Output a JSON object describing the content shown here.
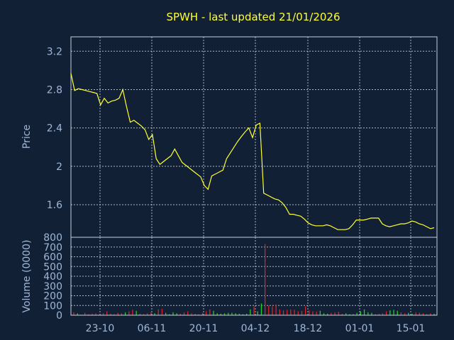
{
  "colors": {
    "background": "#112035",
    "title": "#ffff33",
    "price_line": "#ffff33",
    "axis_text": "#9fb8d8",
    "grid": "#c8d0dc",
    "volume_up": "#22cc22",
    "volume_down": "#dd2222"
  },
  "chart_data": [
    {
      "type": "line",
      "title": "SPWH - last updated 21/01/2026",
      "ylabel": "Price",
      "ylim": [
        1.26,
        3.35
      ],
      "yticks": [
        1.6,
        2,
        2.4,
        2.8,
        3.2
      ],
      "ytick_labels": [
        "1.6",
        "2",
        "2.4",
        "2.8",
        "3.2"
      ],
      "xtick_labels": [
        "23-10",
        "06-11",
        "20-11",
        "04-12",
        "18-12",
        "01-01",
        "15-01"
      ],
      "grid": true,
      "series": [
        {
          "values": [
            2.97,
            2.79,
            2.81,
            2.8,
            2.79,
            2.78,
            2.77,
            2.76,
            2.64,
            2.71,
            2.66,
            2.68,
            2.69,
            2.71,
            2.8,
            2.62,
            2.46,
            2.48,
            2.45,
            2.42,
            2.38,
            2.28,
            2.33,
            2.08,
            2.02,
            2.05,
            2.08,
            2.11,
            2.18,
            2.11,
            2.04,
            2.01,
            1.98,
            1.95,
            1.92,
            1.89,
            1.8,
            1.76,
            1.9,
            1.92,
            1.94,
            1.96,
            2.08,
            2.14,
            2.2,
            2.26,
            2.31,
            2.36,
            2.4,
            2.3,
            2.43,
            2.45,
            1.72,
            1.7,
            1.68,
            1.66,
            1.65,
            1.62,
            1.57,
            1.5,
            1.5,
            1.49,
            1.48,
            1.45,
            1.41,
            1.39,
            1.38,
            1.38,
            1.38,
            1.39,
            1.38,
            1.36,
            1.34,
            1.34,
            1.34,
            1.35,
            1.39,
            1.44,
            1.44,
            1.44,
            1.45,
            1.46,
            1.46,
            1.46,
            1.4,
            1.38,
            1.37,
            1.38,
            1.39,
            1.4,
            1.4,
            1.41,
            1.43,
            1.42,
            1.4,
            1.39,
            1.37,
            1.35,
            1.36
          ]
        }
      ]
    },
    {
      "type": "bar",
      "ylabel": "Volume (0000)",
      "ylim": [
        0,
        800
      ],
      "yticks": [
        0,
        100,
        200,
        300,
        400,
        500,
        600,
        700,
        800
      ],
      "ytick_labels": [
        "0",
        "100",
        "200",
        "300",
        "400",
        "500",
        "600",
        "700",
        "800"
      ],
      "grid": true,
      "series": [
        {
          "values": [
            30,
            20,
            5,
            25,
            10,
            15,
            20,
            12,
            20,
            40,
            15,
            10,
            25,
            20,
            30,
            40,
            55,
            45,
            15,
            10,
            20,
            30,
            20,
            60,
            65,
            25,
            10,
            30,
            20,
            15,
            30,
            40,
            20,
            15,
            10,
            25,
            40,
            60,
            45,
            20,
            15,
            20,
            25,
            25,
            20,
            15,
            10,
            15,
            60,
            90,
            40,
            120,
            730,
            100,
            90,
            110,
            60,
            50,
            55,
            60,
            55,
            40,
            45,
            90,
            50,
            40,
            35,
            45,
            20,
            15,
            25,
            30,
            35,
            15,
            20,
            10,
            10,
            25,
            40,
            60,
            30,
            25,
            10,
            15,
            20,
            40,
            50,
            55,
            45,
            30,
            20,
            25,
            15,
            30,
            25,
            20,
            10,
            20,
            15
          ]
        }
      ],
      "up": [
        false,
        true,
        false,
        false,
        false,
        false,
        false,
        false,
        false,
        false,
        false,
        false,
        false,
        false,
        true,
        false,
        false,
        true,
        false,
        false,
        false,
        false,
        true,
        false,
        false,
        true,
        true,
        true,
        true,
        false,
        false,
        false,
        false,
        false,
        false,
        false,
        false,
        false,
        true,
        true,
        true,
        true,
        true,
        true,
        true,
        true,
        true,
        true,
        true,
        false,
        true,
        true,
        false,
        false,
        false,
        false,
        false,
        false,
        false,
        false,
        false,
        false,
        false,
        false,
        false,
        false,
        false,
        true,
        true,
        true,
        false,
        false,
        false,
        false,
        true,
        true,
        true,
        true,
        true,
        true,
        true,
        true,
        false,
        false,
        false,
        false,
        true,
        true,
        true,
        false,
        false,
        true,
        true,
        false,
        false,
        false,
        false,
        false,
        true
      ]
    }
  ]
}
